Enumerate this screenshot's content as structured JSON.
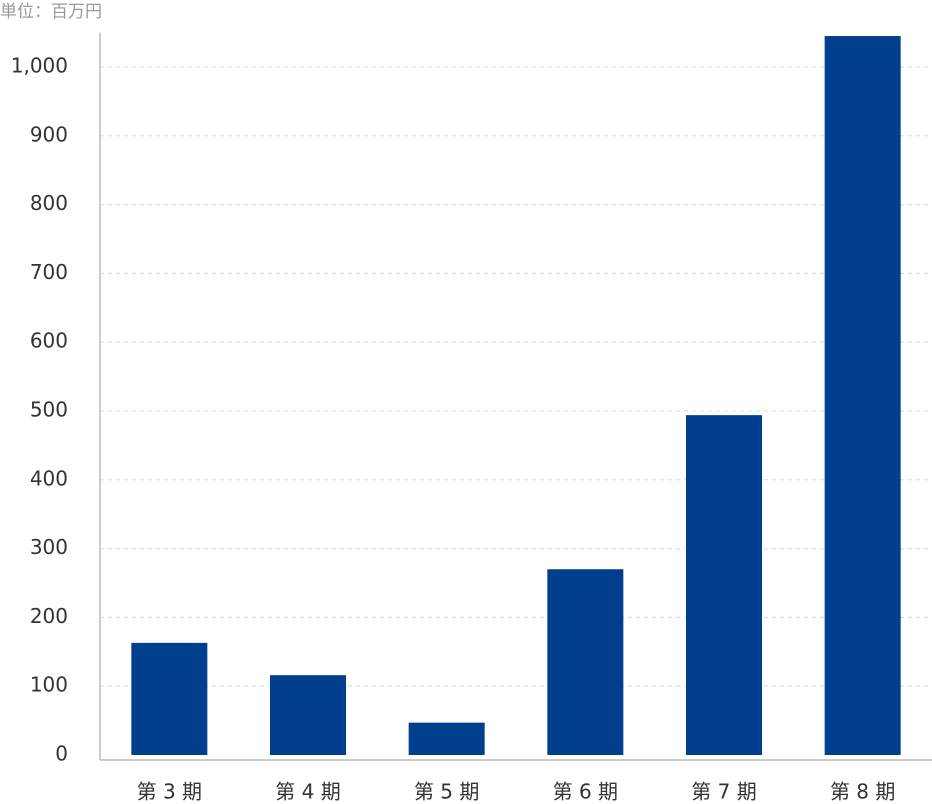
{
  "chart_data": {
    "type": "bar",
    "unit_label": "単位：百万円",
    "categories": [
      "第 3 期",
      "第 4 期",
      "第 5 期",
      "第 6 期",
      "第 7 期",
      "第 8 期"
    ],
    "values": [
      163,
      116,
      47,
      270,
      494,
      1045
    ],
    "color": "#003f8e",
    "ylim": [
      0,
      1050
    ],
    "yticks": [
      0,
      100,
      200,
      300,
      400,
      500,
      600,
      700,
      800,
      900,
      {
        "value": 1000,
        "label": "1,000"
      }
    ],
    "grid": true
  }
}
